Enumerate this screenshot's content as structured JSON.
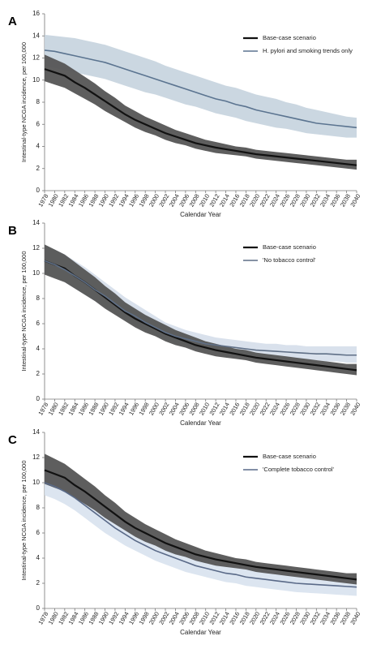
{
  "chart_data": [
    {
      "type": "line",
      "panel_label": "A",
      "ylabel": "Intestinal-type NCGA incidence, per 100,000",
      "xlabel": "Calendar Year",
      "x": [
        1978,
        1980,
        1982,
        1984,
        1986,
        1988,
        1990,
        1992,
        1994,
        1996,
        1998,
        2000,
        2002,
        2004,
        2006,
        2008,
        2010,
        2012,
        2014,
        2016,
        2018,
        2020,
        2022,
        2024,
        2026,
        2028,
        2030,
        2032,
        2034,
        2036,
        2038,
        2040
      ],
      "xlim": [
        1978,
        2040
      ],
      "xticks": [
        1978,
        1980,
        1982,
        1984,
        1986,
        1988,
        1990,
        1992,
        1994,
        1996,
        1998,
        2000,
        2002,
        2004,
        2006,
        2008,
        2010,
        2012,
        2014,
        2016,
        2018,
        2020,
        2022,
        2024,
        2026,
        2028,
        2030,
        2032,
        2034,
        2036,
        2038,
        2040
      ],
      "ylim": [
        0,
        16
      ],
      "yticks": [
        0,
        2,
        4,
        6,
        8,
        10,
        12,
        14,
        16
      ],
      "series": [
        {
          "name": "Base-case scenario",
          "color": "#111111",
          "band_color": "#555555",
          "values": [
            11.0,
            10.7,
            10.4,
            9.8,
            9.3,
            8.7,
            8.1,
            7.5,
            6.9,
            6.4,
            6.0,
            5.6,
            5.2,
            4.9,
            4.6,
            4.3,
            4.1,
            3.9,
            3.75,
            3.6,
            3.45,
            3.3,
            3.2,
            3.1,
            3.0,
            2.9,
            2.8,
            2.7,
            2.6,
            2.5,
            2.4,
            2.3
          ],
          "lower": [
            9.9,
            9.6,
            9.3,
            8.8,
            8.3,
            7.8,
            7.2,
            6.7,
            6.2,
            5.7,
            5.3,
            5.0,
            4.6,
            4.3,
            4.1,
            3.8,
            3.6,
            3.4,
            3.3,
            3.2,
            3.1,
            2.9,
            2.8,
            2.7,
            2.6,
            2.5,
            2.4,
            2.3,
            2.2,
            2.1,
            2.0,
            1.9
          ],
          "upper": [
            12.3,
            11.9,
            11.5,
            10.9,
            10.3,
            9.7,
            9.0,
            8.4,
            7.7,
            7.2,
            6.7,
            6.3,
            5.9,
            5.5,
            5.2,
            4.9,
            4.6,
            4.4,
            4.2,
            4.0,
            3.9,
            3.7,
            3.6,
            3.5,
            3.4,
            3.3,
            3.2,
            3.1,
            3.0,
            2.9,
            2.8,
            2.8
          ]
        },
        {
          "name": "H. pylori and smoking trends only",
          "color": "#5b7490",
          "band_color": "#c5d3de",
          "values": [
            12.7,
            12.6,
            12.4,
            12.2,
            12.0,
            11.8,
            11.6,
            11.3,
            11.0,
            10.7,
            10.4,
            10.1,
            9.8,
            9.5,
            9.2,
            8.9,
            8.6,
            8.3,
            8.1,
            7.8,
            7.6,
            7.3,
            7.1,
            6.9,
            6.7,
            6.5,
            6.3,
            6.1,
            6.0,
            5.9,
            5.8,
            5.7
          ],
          "lower": [
            11.3,
            11.1,
            10.9,
            10.7,
            10.5,
            10.3,
            10.1,
            9.8,
            9.5,
            9.2,
            8.9,
            8.7,
            8.4,
            8.1,
            7.8,
            7.6,
            7.3,
            7.0,
            6.8,
            6.6,
            6.3,
            6.1,
            5.9,
            5.7,
            5.6,
            5.4,
            5.2,
            5.1,
            5.0,
            4.9,
            4.8,
            4.8
          ],
          "upper": [
            14.1,
            14.0,
            13.9,
            13.8,
            13.6,
            13.4,
            13.2,
            12.9,
            12.6,
            12.3,
            12.0,
            11.7,
            11.3,
            11.0,
            10.7,
            10.4,
            10.1,
            9.8,
            9.5,
            9.3,
            9.0,
            8.7,
            8.5,
            8.3,
            8.0,
            7.8,
            7.5,
            7.3,
            7.1,
            6.9,
            6.7,
            6.6
          ]
        }
      ]
    },
    {
      "type": "line",
      "panel_label": "B",
      "ylabel": "Intestinal-type NCGA incidence, per 100,000",
      "xlabel": "Calendar Year",
      "x": [
        1978,
        1980,
        1982,
        1984,
        1986,
        1988,
        1990,
        1992,
        1994,
        1996,
        1998,
        2000,
        2002,
        2004,
        2006,
        2008,
        2010,
        2012,
        2014,
        2016,
        2018,
        2020,
        2022,
        2024,
        2026,
        2028,
        2030,
        2032,
        2034,
        2036,
        2038,
        2040
      ],
      "xlim": [
        1978,
        2040
      ],
      "xticks": [
        1978,
        1980,
        1982,
        1984,
        1986,
        1988,
        1990,
        1992,
        1994,
        1996,
        1998,
        2000,
        2002,
        2004,
        2006,
        2008,
        2010,
        2012,
        2014,
        2016,
        2018,
        2020,
        2022,
        2024,
        2026,
        2028,
        2030,
        2032,
        2034,
        2036,
        2038,
        2040
      ],
      "ylim": [
        0,
        14
      ],
      "yticks": [
        0,
        2,
        4,
        6,
        8,
        10,
        12,
        14
      ],
      "series": [
        {
          "name": "Base-case scenario",
          "color": "#111111",
          "band_color": "#555555",
          "values": [
            11.0,
            10.7,
            10.4,
            9.8,
            9.3,
            8.7,
            8.1,
            7.5,
            6.9,
            6.4,
            6.0,
            5.6,
            5.2,
            4.9,
            4.6,
            4.3,
            4.1,
            3.9,
            3.75,
            3.6,
            3.45,
            3.3,
            3.2,
            3.1,
            3.0,
            2.9,
            2.8,
            2.7,
            2.6,
            2.5,
            2.4,
            2.3
          ],
          "lower": [
            9.9,
            9.6,
            9.3,
            8.8,
            8.3,
            7.8,
            7.2,
            6.7,
            6.2,
            5.7,
            5.3,
            5.0,
            4.6,
            4.3,
            4.1,
            3.8,
            3.6,
            3.4,
            3.3,
            3.2,
            3.1,
            2.9,
            2.8,
            2.7,
            2.6,
            2.5,
            2.4,
            2.3,
            2.2,
            2.1,
            2.0,
            1.9
          ],
          "upper": [
            12.3,
            11.9,
            11.5,
            10.9,
            10.3,
            9.7,
            9.0,
            8.4,
            7.7,
            7.2,
            6.7,
            6.3,
            5.9,
            5.5,
            5.2,
            4.9,
            4.6,
            4.4,
            4.2,
            4.0,
            3.9,
            3.7,
            3.6,
            3.5,
            3.4,
            3.3,
            3.2,
            3.1,
            3.0,
            2.9,
            2.8,
            2.8
          ]
        },
        {
          "name": "'No tobacco control'",
          "color": "#5f6f86",
          "band_color": "#d5deea",
          "values": [
            11.0,
            10.7,
            10.3,
            9.8,
            9.3,
            8.7,
            8.2,
            7.6,
            7.0,
            6.6,
            6.1,
            5.7,
            5.3,
            5.0,
            4.8,
            4.6,
            4.4,
            4.3,
            4.2,
            4.1,
            4.0,
            3.9,
            3.85,
            3.8,
            3.75,
            3.7,
            3.65,
            3.6,
            3.6,
            3.55,
            3.5,
            3.5
          ],
          "lower": [
            10.0,
            9.7,
            9.3,
            8.8,
            8.3,
            7.8,
            7.3,
            6.8,
            6.3,
            5.9,
            5.5,
            5.1,
            4.7,
            4.5,
            4.3,
            4.1,
            3.9,
            3.8,
            3.7,
            3.6,
            3.5,
            3.4,
            3.3,
            3.3,
            3.2,
            3.2,
            3.1,
            3.1,
            3.0,
            3.0,
            2.9,
            2.9
          ],
          "upper": [
            12.2,
            11.9,
            11.5,
            11.0,
            10.5,
            9.9,
            9.3,
            8.7,
            8.1,
            7.6,
            7.1,
            6.6,
            6.1,
            5.8,
            5.5,
            5.3,
            5.1,
            4.9,
            4.8,
            4.7,
            4.6,
            4.5,
            4.4,
            4.4,
            4.3,
            4.3,
            4.2,
            4.2,
            4.2,
            4.2,
            4.2,
            4.2
          ]
        }
      ]
    },
    {
      "type": "line",
      "panel_label": "C",
      "ylabel": "Intestinal-type NCGA incidence, per 100,000",
      "xlabel": "Calendar Year",
      "x": [
        1978,
        1980,
        1982,
        1984,
        1986,
        1988,
        1990,
        1992,
        1994,
        1996,
        1998,
        2000,
        2002,
        2004,
        2006,
        2008,
        2010,
        2012,
        2014,
        2016,
        2018,
        2020,
        2022,
        2024,
        2026,
        2028,
        2030,
        2032,
        2034,
        2036,
        2038,
        2040
      ],
      "xlim": [
        1978,
        2040
      ],
      "xticks": [
        1978,
        1980,
        1982,
        1984,
        1986,
        1988,
        1990,
        1992,
        1994,
        1996,
        1998,
        2000,
        2002,
        2004,
        2006,
        2008,
        2010,
        2012,
        2014,
        2016,
        2018,
        2020,
        2022,
        2024,
        2026,
        2028,
        2030,
        2032,
        2034,
        2036,
        2038,
        2040
      ],
      "ylim": [
        0,
        14
      ],
      "yticks": [
        0,
        2,
        4,
        6,
        8,
        10,
        12,
        14
      ],
      "series": [
        {
          "name": "Base-case scenario",
          "color": "#111111",
          "band_color": "#555555",
          "values": [
            11.0,
            10.7,
            10.4,
            9.8,
            9.3,
            8.7,
            8.1,
            7.5,
            6.9,
            6.4,
            6.0,
            5.6,
            5.2,
            4.9,
            4.6,
            4.3,
            4.1,
            3.9,
            3.75,
            3.6,
            3.45,
            3.3,
            3.2,
            3.1,
            3.0,
            2.9,
            2.8,
            2.7,
            2.6,
            2.5,
            2.4,
            2.3
          ],
          "lower": [
            9.9,
            9.6,
            9.3,
            8.8,
            8.3,
            7.8,
            7.2,
            6.7,
            6.2,
            5.7,
            5.3,
            5.0,
            4.6,
            4.3,
            4.1,
            3.8,
            3.6,
            3.4,
            3.3,
            3.2,
            3.1,
            2.9,
            2.8,
            2.7,
            2.6,
            2.5,
            2.4,
            2.3,
            2.2,
            2.1,
            2.0,
            1.9
          ],
          "upper": [
            12.3,
            11.9,
            11.5,
            10.9,
            10.3,
            9.7,
            9.0,
            8.4,
            7.7,
            7.2,
            6.7,
            6.3,
            5.9,
            5.5,
            5.2,
            4.9,
            4.6,
            4.4,
            4.2,
            4.0,
            3.9,
            3.7,
            3.6,
            3.5,
            3.4,
            3.3,
            3.2,
            3.1,
            3.0,
            2.9,
            2.8,
            2.8
          ]
        },
        {
          "name": "'Complete tobacco control'",
          "color": "#5a6a88",
          "band_color": "#d8e2ee",
          "values": [
            10.0,
            9.7,
            9.3,
            8.8,
            8.2,
            7.6,
            7.0,
            6.4,
            5.9,
            5.4,
            5.0,
            4.6,
            4.3,
            4.0,
            3.7,
            3.4,
            3.2,
            3.0,
            2.8,
            2.7,
            2.5,
            2.4,
            2.3,
            2.2,
            2.1,
            2.0,
            1.95,
            1.9,
            1.85,
            1.8,
            1.75,
            1.7
          ],
          "lower": [
            9.0,
            8.7,
            8.3,
            7.8,
            7.2,
            6.6,
            6.0,
            5.5,
            5.0,
            4.6,
            4.2,
            3.8,
            3.5,
            3.2,
            2.9,
            2.7,
            2.5,
            2.3,
            2.1,
            2.0,
            1.8,
            1.7,
            1.6,
            1.5,
            1.4,
            1.3,
            1.25,
            1.2,
            1.15,
            1.1,
            1.05,
            1.0
          ],
          "upper": [
            11.2,
            10.9,
            10.5,
            10.0,
            9.4,
            8.8,
            8.2,
            7.6,
            7.0,
            6.5,
            6.0,
            5.6,
            5.2,
            4.9,
            4.5,
            4.2,
            4.0,
            3.8,
            3.6,
            3.4,
            3.3,
            3.1,
            3.0,
            2.9,
            2.8,
            2.7,
            2.7,
            2.6,
            2.6,
            2.5,
            2.5,
            2.5
          ]
        }
      ]
    }
  ]
}
